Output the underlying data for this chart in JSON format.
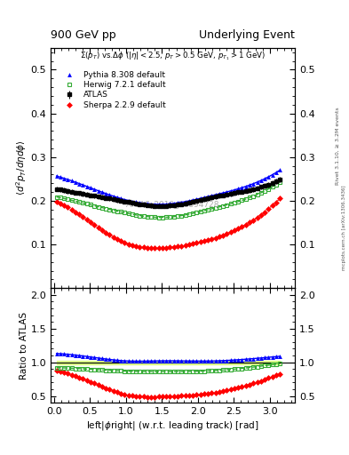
{
  "title_left": "900 GeV pp",
  "title_right": "Underlying Event",
  "annotation": "ATLAS_2010_S8894728",
  "subtitle": "$\\Sigma(p_T)$ vs.$\\Delta\\phi$ ($|\\eta| < 2.5$, $p_T > 0.5$ GeV, $p_{T_1} > 1$ GeV)",
  "ylabel_main": "$\\langle d^2 p_T / d\\eta d\\phi \\rangle$",
  "ylabel_ratio": "Ratio to ATLAS",
  "xlabel": "left|$\\phi$right| (w.r.t. leading track) [rad]",
  "right_label_top": "Rivet 3.1.10, ≥ 3.2M events",
  "right_label_bot": "mcplots.cern.ch [arXiv:1306.3436]",
  "ylim_main": [
    0.0,
    0.55
  ],
  "ylim_ratio": [
    0.4,
    2.1
  ],
  "yticks_main": [
    0.1,
    0.2,
    0.3,
    0.4,
    0.5
  ],
  "yticks_ratio": [
    0.5,
    1.0,
    1.5,
    2.0
  ],
  "xlim": [
    -0.05,
    3.35
  ],
  "atlas_color": "#000000",
  "herwig_color": "#33aa33",
  "pythia_color": "#0000ff",
  "sherpa_color": "#ff0000",
  "band_color": "#ddff88"
}
